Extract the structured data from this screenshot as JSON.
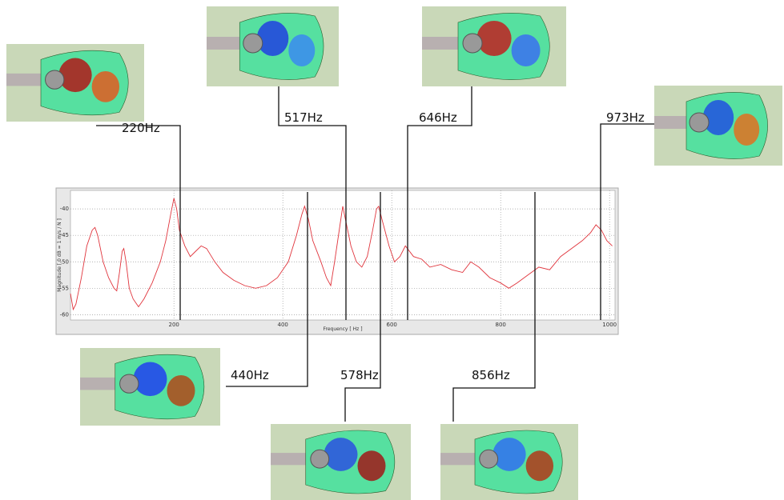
{
  "chart_data": {
    "type": "line",
    "x_label": "Frequency [ Hz ]",
    "y_label": "Magnitude [ 0 dB = 1 m/s / N ]",
    "x": [
      10,
      15,
      20,
      30,
      40,
      50,
      55,
      60,
      70,
      80,
      90,
      95,
      100,
      105,
      108,
      112,
      118,
      125,
      135,
      145,
      160,
      175,
      185,
      195,
      200,
      205,
      210,
      220,
      230,
      240,
      250,
      260,
      275,
      290,
      310,
      330,
      350,
      370,
      390,
      410,
      425,
      435,
      440,
      447,
      455,
      470,
      480,
      488,
      495,
      505,
      510,
      515,
      525,
      535,
      545,
      555,
      565,
      572,
      576,
      582,
      595,
      605,
      615,
      625,
      640,
      655,
      670,
      690,
      710,
      730,
      745,
      760,
      780,
      800,
      815,
      830,
      850,
      870,
      890,
      910,
      930,
      950,
      965,
      975,
      985,
      995,
      1005
    ],
    "values": [
      -56,
      -59,
      -58,
      -53,
      -47,
      -44,
      -43.5,
      -45,
      -50,
      -53,
      -55,
      -55.5,
      -52,
      -48,
      -47.5,
      -50,
      -55,
      -57,
      -58.5,
      -57,
      -54,
      -50,
      -46,
      -40.5,
      -38,
      -40,
      -44,
      -47,
      -49,
      -48,
      -47,
      -47.5,
      -50,
      -52,
      -53.5,
      -54.5,
      -55,
      -54.5,
      -53,
      -50,
      -45,
      -41,
      -39.5,
      -42,
      -46,
      -50,
      -53,
      -54.5,
      -50,
      -43,
      -39.5,
      -42,
      -47,
      -50,
      -51,
      -49,
      -44,
      -40,
      -39.5,
      -42,
      -47,
      -50,
      -49,
      -47,
      -49,
      -49.5,
      -51,
      -50.5,
      -51.5,
      -52,
      -50,
      -51,
      -53,
      -54,
      -55,
      -54,
      -52.5,
      -51,
      -51.5,
      -49,
      -47.5,
      -46,
      -44.5,
      -43,
      -44,
      -46,
      -47
    ],
    "color": "#e0343c",
    "xlim": [
      10,
      1010
    ],
    "xticks": [
      200,
      400,
      600,
      800,
      1000
    ],
    "ylim": [
      -61,
      -36.5
    ],
    "yticks": [
      -40,
      -45,
      -50,
      -55,
      -60
    ],
    "grid": true,
    "annotations": [
      "220Hz",
      "517Hz",
      "646Hz",
      "973Hz",
      "440Hz",
      "578Hz",
      "856Hz"
    ]
  }
}
